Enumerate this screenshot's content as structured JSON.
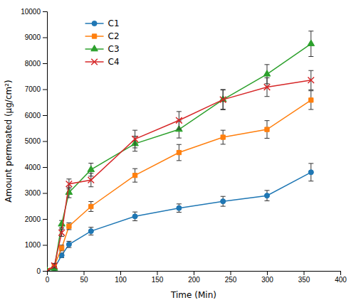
{
  "chart_data": {
    "type": "line",
    "xlabel": "Time (Min)",
    "ylabel": "Amount permeated (μg/cm²)",
    "xlim": [
      0,
      400
    ],
    "ylim": [
      0,
      10000
    ],
    "xticks": [
      0,
      50,
      100,
      150,
      200,
      250,
      300,
      350,
      400
    ],
    "yticks": [
      0,
      1000,
      2000,
      3000,
      4000,
      5000,
      6000,
      7000,
      8000,
      9000,
      10000
    ],
    "grid": false,
    "legend": "upper left",
    "x": [
      0,
      10,
      20,
      30,
      60,
      120,
      180,
      240,
      300,
      360
    ],
    "series": [
      {
        "name": "C1",
        "marker": "circle",
        "values": [
          0,
          100,
          600,
          1020,
          1530,
          2100,
          2420,
          2680,
          2900,
          3800
        ],
        "errors": [
          0,
          60,
          90,
          120,
          150,
          170,
          160,
          190,
          200,
          340
        ]
      },
      {
        "name": "C2",
        "marker": "square",
        "values": [
          0,
          200,
          880,
          1720,
          2480,
          3680,
          4560,
          5150,
          5450,
          6580
        ],
        "errors": [
          0,
          80,
          110,
          130,
          190,
          260,
          310,
          270,
          340,
          360
        ]
      },
      {
        "name": "C3",
        "marker": "triangle",
        "values": [
          0,
          100,
          1800,
          3020,
          3900,
          4900,
          5450,
          6600,
          7580,
          8750
        ],
        "errors": [
          0,
          70,
          140,
          200,
          250,
          290,
          330,
          370,
          370,
          490
        ]
      },
      {
        "name": "C4",
        "marker": "x",
        "values": [
          0,
          200,
          1470,
          3350,
          3500,
          5080,
          5800,
          6600,
          7080,
          7350
        ],
        "errors": [
          0,
          90,
          140,
          190,
          260,
          340,
          340,
          390,
          360,
          370
        ]
      }
    ]
  }
}
